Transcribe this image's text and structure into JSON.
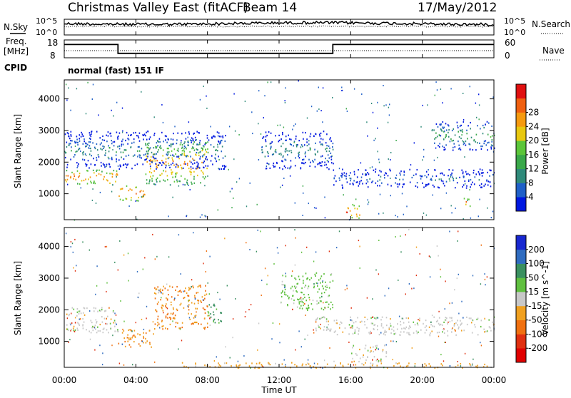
{
  "header": {
    "station": "Christmas Valley East (fitACF)",
    "beam": "Beam 14",
    "date": "17/May/2012"
  },
  "noise_panel": {
    "left_label": "N.Sky",
    "left_ticks": [
      "10^5",
      "10^0"
    ],
    "right_label": "N.Search",
    "right_ticks": [
      "10^5",
      "10^0"
    ]
  },
  "freq_panel": {
    "left_label_top": "Freq.",
    "left_label_bottom": "[MHz]",
    "left_ticks": [
      "18",
      "8"
    ],
    "right_label": "Nave",
    "right_ticks": [
      "60",
      "0"
    ],
    "freq_segments": [
      {
        "start_h": 0,
        "end_h": 3,
        "mhz": 16.3
      },
      {
        "start_h": 3,
        "end_h": 15,
        "mhz": 10.1
      },
      {
        "start_h": 15,
        "end_h": 24,
        "mhz": 16.3
      }
    ]
  },
  "cpid": {
    "label": "CPID",
    "value": "normal (fast) 151 IF"
  },
  "chart_data": [
    {
      "type": "heatmap",
      "name": "power",
      "ylabel": "Slant Range [km]",
      "ylim": [
        180,
        4600
      ],
      "y_ticks": [
        "1000",
        "2000",
        "3000",
        "4000"
      ],
      "colorbar": {
        "label": "Power [dB]",
        "ticks": [
          "4",
          "8",
          "12",
          "16",
          "20",
          "24",
          "28"
        ],
        "colors": [
          "#0018e0",
          "#2060c8",
          "#2f8a7a",
          "#3aa84a",
          "#5cc63a",
          "#e8c810",
          "#f59a10",
          "#f06010",
          "#e01010"
        ]
      },
      "features": [
        {
          "start_h": 0.0,
          "end_h": 3.0,
          "range_km": [
            1300,
            1800
          ],
          "db": 26
        },
        {
          "start_h": 3.0,
          "end_h": 4.5,
          "range_km": [
            800,
            1300
          ],
          "db": 28
        },
        {
          "start_h": 4.5,
          "end_h": 8.0,
          "range_km": [
            1300,
            2700
          ],
          "db": 24
        },
        {
          "start_h": 0.0,
          "end_h": 9.0,
          "range_km": [
            1800,
            3000
          ],
          "db": 10
        },
        {
          "start_h": 11.0,
          "end_h": 15.0,
          "range_km": [
            1800,
            3000
          ],
          "db": 10
        },
        {
          "start_h": 15.7,
          "end_h": 16.5,
          "range_km": [
            200,
            700
          ],
          "db": 28
        },
        {
          "start_h": 15.0,
          "end_h": 24.0,
          "range_km": [
            1200,
            1800
          ],
          "db": 8
        },
        {
          "start_h": 20.5,
          "end_h": 24.0,
          "range_km": [
            2400,
            3300
          ],
          "db": 14
        },
        {
          "start_h": 22.3,
          "end_h": 22.8,
          "range_km": [
            600,
            900
          ],
          "db": 26
        }
      ]
    },
    {
      "type": "heatmap",
      "name": "velocity",
      "ylabel": "Slant Range [km]",
      "ylim": [
        180,
        4600
      ],
      "y_ticks": [
        "1000",
        "2000",
        "3000",
        "4000"
      ],
      "colorbar": {
        "label": "Velocity [m s^-1]",
        "ticks": [
          "200",
          "100",
          "50",
          "15",
          "-15",
          "-50",
          "-100",
          "-200"
        ],
        "colors": [
          "#1828d0",
          "#2f6cc0",
          "#3a9060",
          "#60c040",
          "#c8c8c8",
          "#f0a020",
          "#f07010",
          "#e03010",
          "#e00000"
        ]
      },
      "features": [
        {
          "start_h": 0.0,
          "end_h": 3.0,
          "range_km": [
            1300,
            2100
          ],
          "ms": 0
        },
        {
          "start_h": 3.0,
          "end_h": 5.0,
          "range_km": [
            800,
            1400
          ],
          "ms": -40
        },
        {
          "start_h": 5.0,
          "end_h": 8.0,
          "range_km": [
            1400,
            2800
          ],
          "ms": -50
        },
        {
          "start_h": 8.0,
          "end_h": 9.0,
          "range_km": [
            1600,
            2200
          ],
          "ms": 60
        },
        {
          "start_h": 12.0,
          "end_h": 15.0,
          "range_km": [
            2000,
            3200
          ],
          "ms": 30
        },
        {
          "start_h": 14.0,
          "end_h": 24.0,
          "range_km": [
            1200,
            1800
          ],
          "ms": 0
        },
        {
          "start_h": 16.0,
          "end_h": 18.0,
          "range_km": [
            300,
            900
          ],
          "ms": 0
        },
        {
          "start_h": 6.5,
          "end_h": 24.0,
          "range_km": [
            180,
            350
          ],
          "ms": -30
        }
      ]
    }
  ],
  "x_axis": {
    "label": "Time UT",
    "ticks": [
      "00:00",
      "04:00",
      "08:00",
      "12:00",
      "16:00",
      "20:00",
      "00:00"
    ],
    "range_h": [
      0,
      24
    ]
  }
}
